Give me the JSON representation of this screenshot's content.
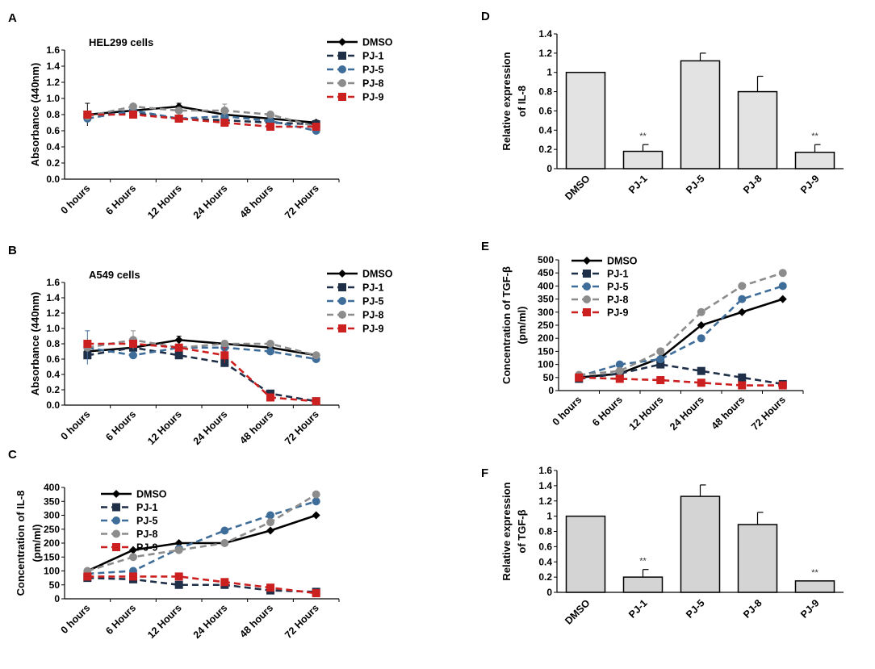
{
  "colors": {
    "DMSO": "#000000",
    "PJ-1": "#1f2f48",
    "PJ-5": "#3f6d99",
    "PJ-8": "#8c8c8c",
    "PJ-9": "#cc1f1f",
    "bar_fill": "#e3e3e3",
    "bar_fill_F": "#d4d4d4"
  },
  "chart_data": [
    {
      "id": "A",
      "panel": "A",
      "type": "line",
      "annotation": "HEL299 cells",
      "ylabel": "Absorbance (440nm)",
      "ylim": [
        0,
        1.6
      ],
      "yticks": [
        "0.0",
        "0.2",
        "0.4",
        "0.6",
        "0.8",
        "1.0",
        "1.2",
        "1.4",
        "1.6"
      ],
      "categories": [
        "0 hours",
        "6 Hours",
        "12 Hours",
        "24  Hours",
        "48 hours",
        "72 Hours"
      ],
      "legend_position": "top-right",
      "series": [
        {
          "name": "DMSO",
          "values": [
            0.8,
            0.85,
            0.9,
            0.8,
            0.75,
            0.7
          ],
          "errors": [
            0.14,
            0.04,
            0.04,
            0.05,
            0.03,
            0.03
          ]
        },
        {
          "name": "PJ-1",
          "values": [
            0.8,
            0.82,
            0.75,
            0.73,
            0.7,
            0.68
          ],
          "errors": [
            0.04,
            0.03,
            0.03,
            0.04,
            0.03,
            0.03
          ]
        },
        {
          "name": "PJ-5",
          "values": [
            0.75,
            0.85,
            0.75,
            0.78,
            0.72,
            0.6
          ],
          "errors": [
            0.04,
            0.03,
            0.03,
            0.04,
            0.03,
            0.03
          ]
        },
        {
          "name": "PJ-8",
          "values": [
            0.78,
            0.9,
            0.85,
            0.85,
            0.8,
            0.65
          ],
          "errors": [
            0.05,
            0.03,
            0.03,
            0.08,
            0.03,
            0.03
          ]
        },
        {
          "name": "PJ-9",
          "values": [
            0.8,
            0.8,
            0.75,
            0.7,
            0.65,
            0.65
          ],
          "errors": [
            0.04,
            0.03,
            0.03,
            0.04,
            0.03,
            0.03
          ]
        }
      ]
    },
    {
      "id": "B",
      "panel": "B",
      "type": "line",
      "annotation": "A549 cells",
      "ylabel": "Absorbance (440nm)",
      "ylim": [
        0,
        1.6
      ],
      "yticks": [
        "0.0",
        "0.2",
        "0.4",
        "0.6",
        "0.8",
        "1.0",
        "1.2",
        "1.4",
        "1.6"
      ],
      "categories": [
        "0 hours",
        "6 Hours",
        "12 Hours",
        "24  Hours",
        "48 hours",
        "72 Hours"
      ],
      "legend_position": "top-right",
      "series": [
        {
          "name": "DMSO",
          "values": [
            0.7,
            0.75,
            0.85,
            0.8,
            0.75,
            0.65
          ],
          "errors": [
            0.04,
            0.04,
            0.05,
            0.04,
            0.03,
            0.03
          ]
        },
        {
          "name": "PJ-1",
          "values": [
            0.65,
            0.75,
            0.65,
            0.55,
            0.15,
            0.05
          ],
          "errors": [
            0.04,
            0.03,
            0.03,
            0.04,
            0.03,
            0.02
          ]
        },
        {
          "name": "PJ-5",
          "values": [
            0.75,
            0.65,
            0.75,
            0.75,
            0.7,
            0.6
          ],
          "errors": [
            0.22,
            0.03,
            0.03,
            0.04,
            0.03,
            0.03
          ]
        },
        {
          "name": "PJ-8",
          "values": [
            0.75,
            0.85,
            0.75,
            0.8,
            0.8,
            0.65
          ],
          "errors": [
            0.04,
            0.12,
            0.03,
            0.03,
            0.03,
            0.03
          ]
        },
        {
          "name": "PJ-9",
          "values": [
            0.8,
            0.8,
            0.75,
            0.65,
            0.1,
            0.05
          ],
          "errors": [
            0.04,
            0.03,
            0.03,
            0.1,
            0.03,
            0.02
          ]
        }
      ]
    },
    {
      "id": "C",
      "panel": "C",
      "type": "line",
      "ylabel": "Concentration of IL-8",
      "ylabel2": "(pm/ml)",
      "ylim": [
        0,
        400
      ],
      "yticks": [
        "0",
        "50",
        "100",
        "150",
        "200",
        "250",
        "300",
        "350",
        "400"
      ],
      "categories": [
        "0 hours",
        "6 Hours",
        "12 Hours",
        "24  Hours",
        "48 hours",
        "72 Hours"
      ],
      "legend_position": "top-left",
      "series": [
        {
          "name": "DMSO",
          "values": [
            100,
            175,
            200,
            200,
            245,
            300
          ]
        },
        {
          "name": "PJ-1",
          "values": [
            75,
            70,
            50,
            50,
            30,
            25
          ]
        },
        {
          "name": "PJ-5",
          "values": [
            90,
            100,
            180,
            245,
            300,
            350
          ]
        },
        {
          "name": "PJ-8",
          "values": [
            100,
            150,
            175,
            200,
            275,
            375
          ]
        },
        {
          "name": "PJ-9",
          "values": [
            80,
            80,
            80,
            60,
            40,
            20
          ]
        }
      ]
    },
    {
      "id": "E",
      "panel": "E",
      "type": "line",
      "ylabel": "Concentration of TGF-β",
      "ylabel2": "(pm/ml)",
      "ylim": [
        0,
        500
      ],
      "yticks": [
        "0",
        "50",
        "100",
        "150",
        "200",
        "250",
        "300",
        "350",
        "400",
        "450",
        "500"
      ],
      "categories": [
        "0 hours",
        "6 Hours",
        "12 Hours",
        "24  Hours",
        "48 hours",
        "72 Hours"
      ],
      "legend_position": "top-left",
      "series": [
        {
          "name": "DMSO",
          "values": [
            50,
            65,
            125,
            250,
            300,
            350
          ]
        },
        {
          "name": "PJ-1",
          "values": [
            45,
            65,
            100,
            75,
            50,
            25
          ]
        },
        {
          "name": "PJ-5",
          "values": [
            55,
            100,
            120,
            200,
            350,
            400
          ]
        },
        {
          "name": "PJ-8",
          "values": [
            60,
            75,
            150,
            300,
            400,
            450
          ]
        },
        {
          "name": "PJ-9",
          "values": [
            50,
            45,
            40,
            30,
            20,
            20
          ]
        }
      ]
    },
    {
      "id": "D",
      "panel": "D",
      "type": "bar",
      "ylabel": "Relative expression",
      "ylabel2": "of IL-8",
      "ylim": [
        0,
        1.4
      ],
      "yticks": [
        "0",
        "0.2",
        "0.4",
        "0.6",
        "0.8",
        "1",
        "1.2",
        "1.4"
      ],
      "categories": [
        "DMSO",
        "PJ-1",
        "PJ-5",
        "PJ-8",
        "PJ-9"
      ],
      "values": [
        1.0,
        0.18,
        1.12,
        0.8,
        0.17
      ],
      "errors": [
        0,
        0.07,
        0.08,
        0.16,
        0.08
      ],
      "significance": [
        "",
        "**",
        "",
        "",
        "**"
      ]
    },
    {
      "id": "F",
      "panel": "F",
      "type": "bar",
      "ylabel": "Relative expression",
      "ylabel2": "of TGF-β",
      "ylim": [
        0,
        1.6
      ],
      "yticks": [
        "0",
        "0.2",
        "0.4",
        "0.6",
        "0.8",
        "1",
        "1.2",
        "1.4",
        "1.6"
      ],
      "categories": [
        "DMSO",
        "PJ-1",
        "PJ-5",
        "PJ-8",
        "PJ-9"
      ],
      "values": [
        1.0,
        0.2,
        1.26,
        0.89,
        0.15
      ],
      "errors": [
        0,
        0.1,
        0.15,
        0.16,
        0
      ],
      "significance": [
        "",
        "**",
        "",
        "",
        "**"
      ]
    }
  ]
}
